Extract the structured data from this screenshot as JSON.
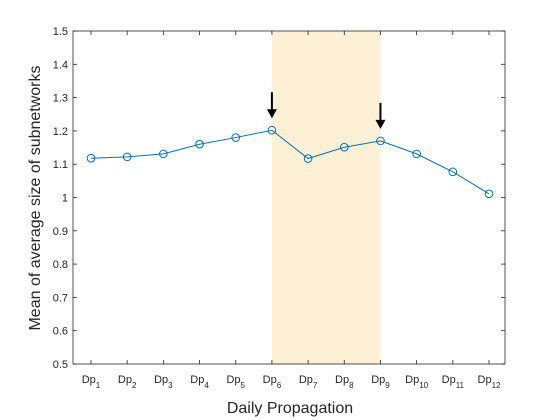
{
  "chart_data": {
    "type": "line",
    "title": "",
    "xlabel": "Daily Propagation",
    "ylabel": "Mean of average size of subnetworks",
    "categories": [
      {
        "base": "Dp",
        "sub": "1"
      },
      {
        "base": "Dp",
        "sub": "2"
      },
      {
        "base": "Dp",
        "sub": "3"
      },
      {
        "base": "Dp",
        "sub": "4"
      },
      {
        "base": "Dp",
        "sub": "5"
      },
      {
        "base": "Dp",
        "sub": "6"
      },
      {
        "base": "Dp",
        "sub": "7"
      },
      {
        "base": "Dp",
        "sub": "8"
      },
      {
        "base": "Dp",
        "sub": "9"
      },
      {
        "base": "Dp",
        "sub": "10"
      },
      {
        "base": "Dp",
        "sub": "11"
      },
      {
        "base": "Dp",
        "sub": "12"
      }
    ],
    "series": [
      {
        "values": [
          1.118,
          1.122,
          1.131,
          1.16,
          1.18,
          1.202,
          1.117,
          1.151,
          1.17,
          1.131,
          1.077,
          1.011
        ],
        "color": "#0072BD",
        "marker": "open-circle"
      }
    ],
    "ylim": [
      0.5,
      1.5
    ],
    "yticks": [
      "0.5",
      "0.6",
      "0.7",
      "0.8",
      "0.9",
      "1",
      "1.1",
      "1.2",
      "1.3",
      "1.4",
      "1.5"
    ],
    "highlight_band": {
      "from_index": 5,
      "to_index": 8,
      "color": "#FDF0D5"
    },
    "arrows": [
      {
        "index": 5
      },
      {
        "index": 8
      }
    ],
    "grid": false
  }
}
